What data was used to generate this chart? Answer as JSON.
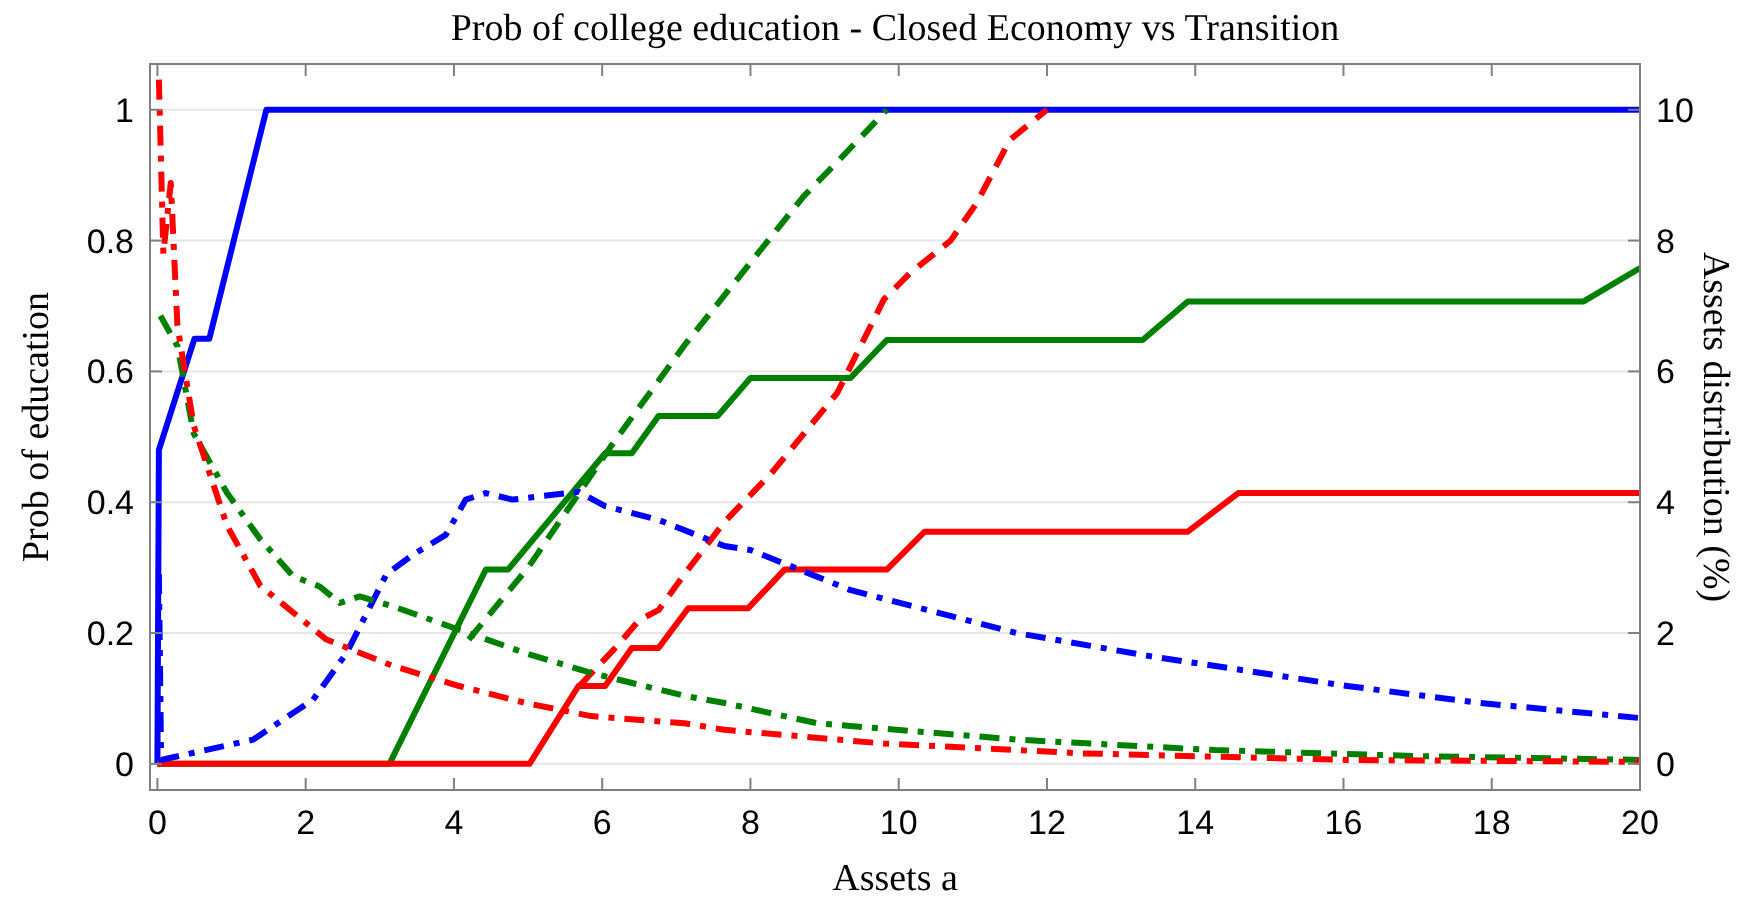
{
  "chart_data": {
    "type": "line",
    "title": "Prob of college education - Closed Economy vs Transition",
    "xlabel": "Assets a",
    "ylabel": "Prob of education",
    "y2label": "Assets distribution (%)",
    "xlim": [
      -0.1,
      20
    ],
    "xticks": [
      0,
      2,
      4,
      6,
      8,
      10,
      12,
      14,
      16,
      18,
      20
    ],
    "ylim": [
      -0.04,
      1.07
    ],
    "yticks": [
      0,
      0.2,
      0.4,
      0.6,
      0.8,
      1
    ],
    "y2lim": [
      -0.4,
      10.7
    ],
    "y2ticks": [
      0,
      2,
      4,
      6,
      8,
      10
    ],
    "grid": "y",
    "marker": "none",
    "series": [
      {
        "color": "#0000ff",
        "line_style": "solid",
        "x": [
          0,
          0.02,
          0.5,
          0.7,
          1.47,
          20
        ],
        "values": [
          0,
          0.48,
          0.65,
          0.65,
          1,
          1
        ]
      },
      {
        "color": "#008000",
        "line_style": "solid",
        "x": [
          0,
          3.13,
          4.43,
          4.73,
          6.04,
          6.4,
          6.76,
          7.56,
          8.0,
          9.35,
          9.84,
          13.29,
          13.9,
          19.24,
          20
        ],
        "values": [
          0,
          0,
          0.297,
          0.297,
          0.475,
          0.475,
          0.532,
          0.532,
          0.59,
          0.59,
          0.648,
          0.648,
          0.707,
          0.707,
          0.758
        ]
      },
      {
        "color": "#ff0000",
        "line_style": "solid",
        "x": [
          0,
          5.02,
          5.68,
          6.04,
          6.4,
          6.76,
          7.16,
          7.97,
          8.46,
          9.84,
          10.35,
          13.9,
          14.58,
          20
        ],
        "values": [
          0,
          0,
          0.119,
          0.119,
          0.177,
          0.177,
          0.238,
          0.238,
          0.297,
          0.297,
          0.355,
          0.355,
          0.414,
          0.414
        ]
      },
      {
        "color": "#008000",
        "line_style": "dashed",
        "x": [
          4.2,
          5.0,
          6.12,
          7.11,
          8.28,
          8.72,
          9.17,
          9.84
        ],
        "values": [
          0.19,
          0.3,
          0.486,
          0.64,
          0.806,
          0.868,
          0.92,
          1
        ]
      },
      {
        "color": "#ff0000",
        "line_style": "dashed",
        "x": [
          5.7,
          6.2,
          6.5,
          6.76,
          7.11,
          7.65,
          8.28,
          9.17,
          9.8,
          10.15,
          10.7,
          11.05,
          11.5,
          12.0
        ],
        "values": [
          0.12,
          0.18,
          0.22,
          0.235,
          0.29,
          0.37,
          0.444,
          0.567,
          0.71,
          0.75,
          0.8,
          0.857,
          0.954,
          1
        ]
      },
      {
        "color": "#0000ff",
        "line_style": "dashdot",
        "axis": "y2",
        "x": [
          0.02,
          0.05,
          1.29,
          2.1,
          2.55,
          3.09,
          3.45,
          3.89,
          4.16,
          4.43,
          4.79,
          5.68,
          6.04,
          6.76,
          7.65,
          8.0,
          9.34,
          11.59,
          13.37,
          16.05,
          17.85,
          20
        ],
        "values": [
          2.9,
          0.06,
          0.37,
          0.98,
          1.69,
          2.9,
          3.2,
          3.5,
          4.04,
          4.14,
          4.04,
          4.16,
          3.94,
          3.73,
          3.33,
          3.27,
          2.66,
          2.0,
          1.65,
          1.19,
          0.93,
          0.7
        ]
      },
      {
        "color": "#008000",
        "line_style": "dashdot",
        "axis": "y2",
        "x": [
          0.04,
          0.27,
          0.49,
          0.94,
          1.39,
          1.83,
          2.19,
          2.46,
          2.73,
          3.17,
          4.07,
          4.97,
          5.85,
          7.11,
          7.65,
          8.9,
          11.59,
          14.27,
          16.96,
          20
        ],
        "values": [
          6.85,
          6.39,
          5.05,
          4.14,
          3.43,
          2.87,
          2.71,
          2.46,
          2.56,
          2.41,
          2.05,
          1.69,
          1.39,
          1.04,
          0.93,
          0.62,
          0.37,
          0.21,
          0.12,
          0.06
        ]
      },
      {
        "color": "#ff0000",
        "line_style": "dashdot",
        "axis": "y2",
        "x": [
          0.02,
          0.08,
          0.18,
          0.27,
          0.49,
          0.94,
          1.39,
          2.28,
          3.17,
          4.07,
          4.97,
          5.85,
          7.11,
          7.65,
          9.8,
          12.48,
          16.05,
          20
        ],
        "values": [
          10.46,
          7.8,
          8.88,
          6.7,
          5.17,
          3.64,
          2.72,
          1.9,
          1.5,
          1.19,
          0.93,
          0.73,
          0.62,
          0.52,
          0.31,
          0.16,
          0.06,
          0.03
        ]
      }
    ]
  }
}
